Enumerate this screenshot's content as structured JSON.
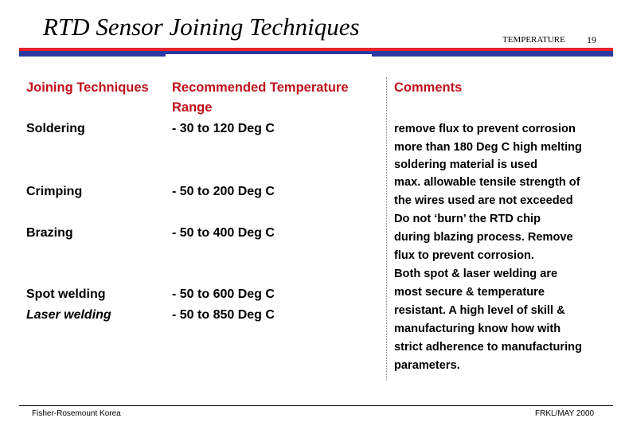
{
  "header": {
    "title": "RTD Sensor Joining Techniques",
    "topic": "TEMPERATURE",
    "page_number": "19"
  },
  "table": {
    "col1_header": "Joining Techniques",
    "col2_header_line1": "Recommended Temperature",
    "col2_header_line2": "Range",
    "col3_header": "Comments",
    "rows": [
      {
        "technique": "Soldering",
        "range": "- 30 to 120 Deg C"
      },
      {
        "technique": "Crimping",
        "range": "- 50 to 200 Deg C"
      },
      {
        "technique": "Brazing",
        "range": "- 50 to 400 Deg C"
      },
      {
        "technique": "Spot welding",
        "range": "- 50 to 600 Deg C"
      },
      {
        "technique": "Laser welding",
        "range": "- 50 to 850 Deg C"
      }
    ],
    "comment_lines": [
      "remove flux to prevent corrosion",
      "more than 180 Deg C high melting",
      "soldering material is used",
      "max. allowable tensile strength of",
      "the wires used are not exceeded",
      "Do not ‘burn’ the RTD chip",
      "during blazing process. Remove",
      "flux to prevent corrosion.",
      "Both spot & laser welding are",
      "most secure & temperature",
      "resistant. A high level of skill &",
      "manufacturing know how with",
      "strict adherence to manufacturing",
      "parameters."
    ]
  },
  "footer": {
    "left": "Fisher-Rosemount Korea",
    "right": "FRKL/MAY 2000"
  },
  "colors": {
    "accent_red": "#e8232b",
    "accent_blue": "#2c38a3",
    "text_red": "#c0101a"
  }
}
